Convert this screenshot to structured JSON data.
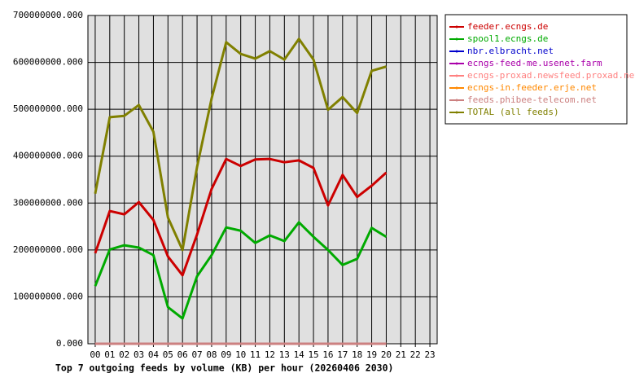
{
  "chart_data": {
    "type": "line",
    "title": "Top 7 outgoing feeds by volume (KB) per hour (20260406 2030)",
    "categories": [
      "00",
      "01",
      "02",
      "03",
      "04",
      "05",
      "06",
      "07",
      "08",
      "09",
      "10",
      "11",
      "12",
      "13",
      "14",
      "15",
      "16",
      "17",
      "18",
      "19",
      "20",
      "21",
      "22",
      "23"
    ],
    "ylim": [
      0,
      700000000
    ],
    "yticks": [
      {
        "value": 0,
        "label": "0.000"
      },
      {
        "value": 100000000,
        "label": "100000000.000"
      },
      {
        "value": 200000000,
        "label": "200000000.000"
      },
      {
        "value": 300000000,
        "label": "300000000.000"
      },
      {
        "value": 400000000,
        "label": "400000000.000"
      },
      {
        "value": 500000000,
        "label": "500000000.000"
      },
      {
        "value": 600000000,
        "label": "600000000.000"
      },
      {
        "value": 700000000,
        "label": "700000000.000"
      }
    ],
    "grid": true,
    "legend": "right",
    "series": [
      {
        "name": "feeder.ecngs.de",
        "color": "#cc0000",
        "values": [
          193000000,
          283000000,
          276000000,
          302000000,
          264000000,
          186000000,
          146000000,
          233000000,
          330000000,
          394000000,
          379000000,
          393000000,
          394000000,
          387000000,
          391000000,
          375000000,
          295000000,
          360000000,
          313000000,
          337000000,
          365000000,
          null,
          null,
          null
        ]
      },
      {
        "name": "spool1.ecngs.de",
        "color": "#00aa00",
        "values": [
          123000000,
          201000000,
          210000000,
          205000000,
          189000000,
          78000000,
          54000000,
          144000000,
          189000000,
          248000000,
          241000000,
          215000000,
          231000000,
          219000000,
          259000000,
          228000000,
          200000000,
          168000000,
          181000000,
          247000000,
          228000000,
          null,
          null,
          null
        ]
      },
      {
        "name": "nbr.elbracht.net",
        "color": "#0000cc",
        "values": [
          0,
          0,
          0,
          0,
          0,
          0,
          0,
          0,
          0,
          0,
          0,
          0,
          0,
          0,
          0,
          0,
          0,
          0,
          0,
          0,
          0,
          null,
          null,
          null
        ]
      },
      {
        "name": "ecngs-feed-me.usenet.farm",
        "color": "#aa00aa",
        "values": [
          0,
          0,
          0,
          0,
          0,
          0,
          0,
          0,
          0,
          0,
          0,
          0,
          0,
          0,
          0,
          0,
          0,
          0,
          0,
          0,
          0,
          null,
          null,
          null
        ]
      },
      {
        "name": "ecngs-proxad.newsfeed.proxad.net",
        "color": "#ff8080",
        "values": [
          0,
          0,
          0,
          0,
          0,
          0,
          0,
          0,
          0,
          0,
          0,
          0,
          0,
          0,
          0,
          0,
          0,
          0,
          0,
          0,
          0,
          null,
          null,
          null
        ]
      },
      {
        "name": "ecngs-in.feeder.erje.net",
        "color": "#ff8800",
        "values": [
          0,
          0,
          0,
          0,
          0,
          0,
          0,
          0,
          0,
          0,
          0,
          0,
          0,
          0,
          0,
          0,
          0,
          0,
          0,
          0,
          0,
          null,
          null,
          null
        ]
      },
      {
        "name": "feeds.phibee-telecom.net",
        "color": "#cc8080",
        "values": [
          0,
          0,
          0,
          0,
          0,
          0,
          0,
          0,
          0,
          0,
          0,
          0,
          0,
          0,
          0,
          0,
          0,
          0,
          0,
          0,
          0,
          null,
          null,
          null
        ]
      },
      {
        "name": "TOTAL (all feeds)",
        "color": "#808000",
        "values": [
          320000000,
          483000000,
          486000000,
          509000000,
          452000000,
          269000000,
          200000000,
          377000000,
          523000000,
          643000000,
          618000000,
          608000000,
          624000000,
          606000000,
          650000000,
          606000000,
          499000000,
          526000000,
          492000000,
          582000000,
          591000000,
          null,
          null,
          null
        ]
      }
    ]
  }
}
